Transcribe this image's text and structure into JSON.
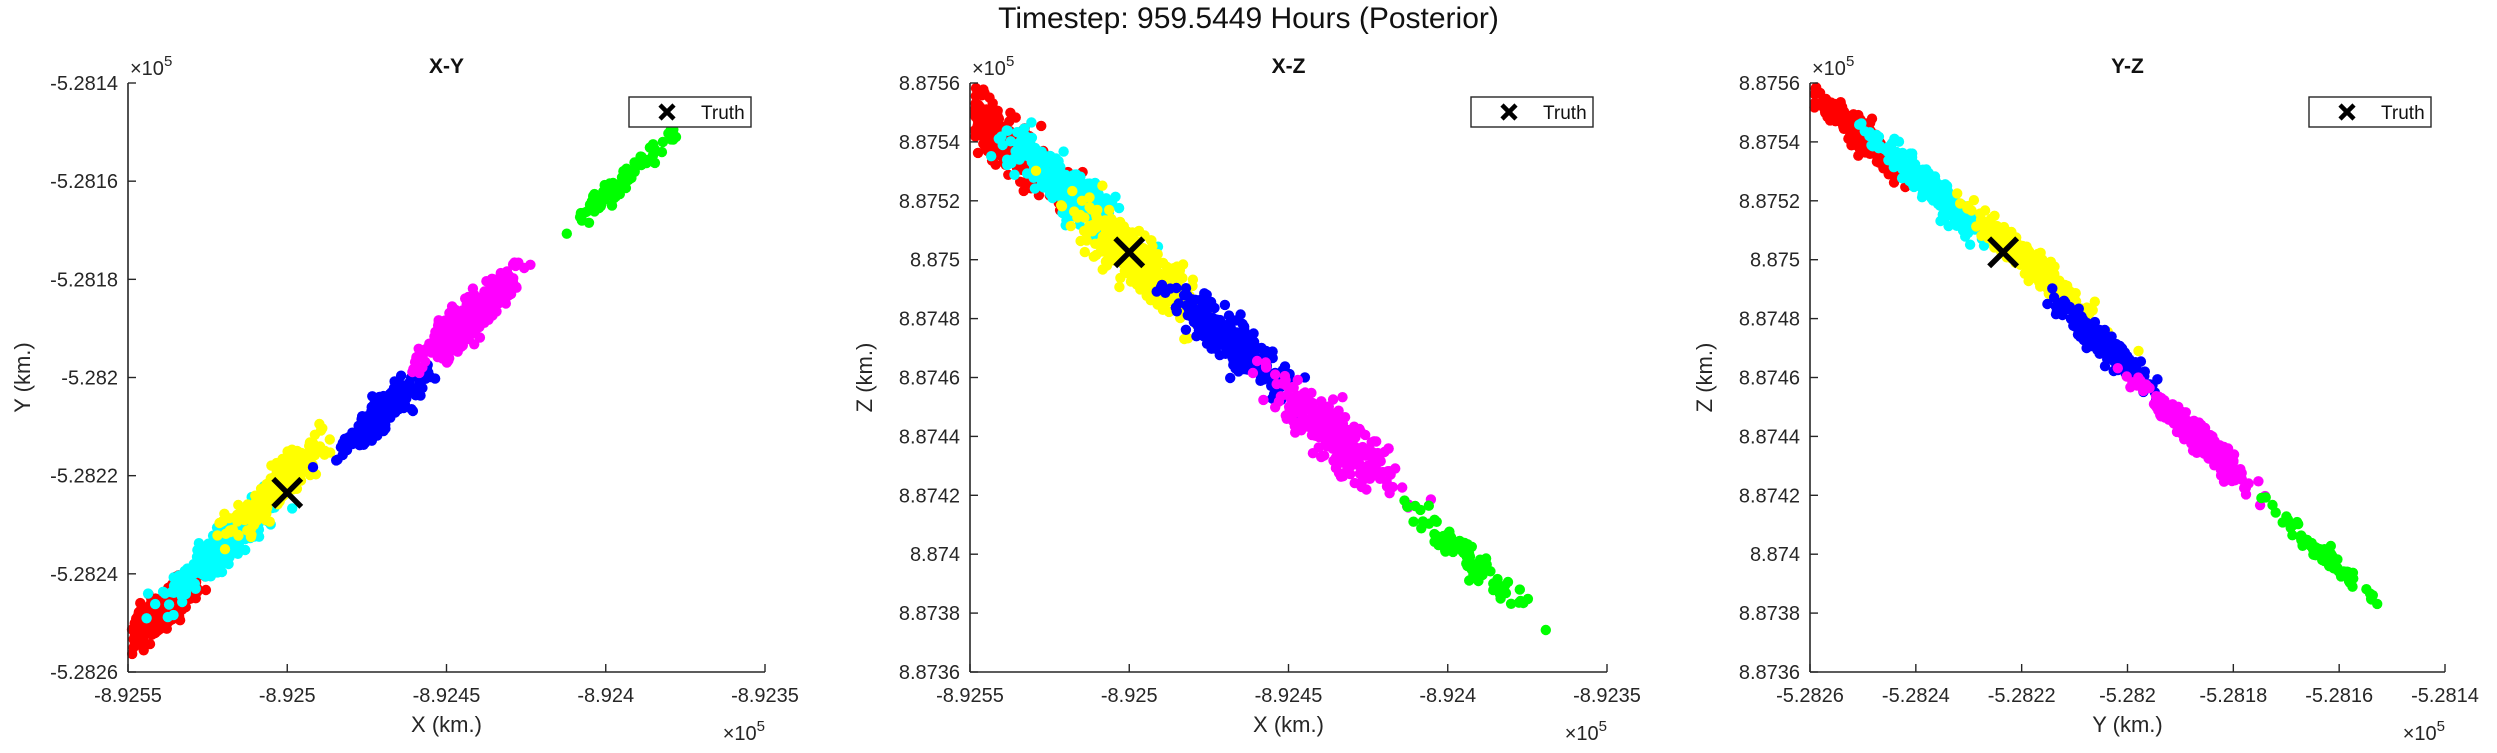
{
  "figure": {
    "title": "Timestep: 959.5449 Hours (Posterior)"
  },
  "chart_data": [
    {
      "type": "scatter",
      "title": "X-Y",
      "xlabel": "X (km.)",
      "ylabel": "Y (km.)",
      "xlim": [
        -892550,
        -892350
      ],
      "ylim": [
        -528260,
        -528140
      ],
      "xticks": [
        -892550,
        -892500,
        -892450,
        -892400,
        -892350
      ],
      "yticks": [
        -528260,
        -528240,
        -528220,
        -528200,
        -528180,
        -528160,
        -528140
      ],
      "xtick_labels": [
        "-8.9255",
        "-8.925",
        "-8.9245",
        "-8.924",
        "-8.9235"
      ],
      "ytick_labels": [
        "-5.2826",
        "-5.2824",
        "-5.2822",
        "-5.282",
        "-5.2818",
        "-5.2816",
        "-5.2814"
      ],
      "x_exponent": "×10^5",
      "y_exponent": "×10^5",
      "legend": {
        "label": "Truth",
        "position": "top-right"
      },
      "truth": {
        "x": -892500,
        "y": -528223.5
      },
      "series": [
        {
          "color": "#ff0000",
          "center": [
            -892540,
            -528248
          ],
          "spread_major": 5.2,
          "spread_minor": 1.3,
          "count": 320
        },
        {
          "color": "#00ffff",
          "center": [
            -892521,
            -528235
          ],
          "spread_major": 5.8,
          "spread_minor": 1.2,
          "count": 320
        },
        {
          "color": "#ffff00",
          "center": [
            -892503,
            -528222
          ],
          "spread_major": 5.6,
          "spread_minor": 1.2,
          "count": 320
        },
        {
          "color": "#0000ff",
          "center": [
            -892470,
            -528207
          ],
          "spread_major": 4.5,
          "spread_minor": 1.1,
          "count": 260
        },
        {
          "color": "#ff00ff",
          "center": [
            -892443,
            -528188
          ],
          "spread_major": 5.0,
          "spread_minor": 1.3,
          "count": 320
        },
        {
          "color": "#00ff00",
          "center": [
            -892395,
            -528160
          ],
          "spread_major": 6.0,
          "spread_minor": 0.7,
          "count": 90
        }
      ]
    },
    {
      "type": "scatter",
      "title": "X-Z",
      "xlabel": "X (km.)",
      "ylabel": "Z (km.)",
      "xlim": [
        -892550,
        -892350
      ],
      "ylim": [
        887360,
        887560
      ],
      "xticks": [
        -892550,
        -892500,
        -892450,
        -892400,
        -892350
      ],
      "yticks": [
        887360,
        887380,
        887400,
        887420,
        887440,
        887460,
        887480,
        887500,
        887520,
        887540,
        887560
      ],
      "xtick_labels": [
        "-8.9255",
        "-8.925",
        "-8.9245",
        "-8.924",
        "-8.9235"
      ],
      "ytick_labels": [
        "8.8736",
        "8.8738",
        "8.874",
        "8.8742",
        "8.8744",
        "8.8746",
        "8.8748",
        "8.875",
        "8.8752",
        "8.8754",
        "8.8756"
      ],
      "x_exponent": "×10^5",
      "y_exponent": "×10^5",
      "legend": {
        "label": "Truth",
        "position": "top-right"
      },
      "truth": {
        "x": -892500,
        "z": 887502.5
      },
      "series": [
        {
          "color": "#ff0000",
          "center": [
            -892540,
            887541
          ],
          "spread_major": 6.5,
          "spread_minor": 1.8,
          "count": 320
        },
        {
          "color": "#00ffff",
          "center": [
            -892520,
            887525
          ],
          "spread_major": 6.5,
          "spread_minor": 1.6,
          "count": 320
        },
        {
          "color": "#ffff00",
          "center": [
            -892497,
            887499
          ],
          "spread_major": 6.5,
          "spread_minor": 1.8,
          "count": 320
        },
        {
          "color": "#0000ff",
          "center": [
            -892468,
            887472
          ],
          "spread_major": 5.5,
          "spread_minor": 1.6,
          "count": 260
        },
        {
          "color": "#ff00ff",
          "center": [
            -892435,
            887440
          ],
          "spread_major": 6.5,
          "spread_minor": 1.8,
          "count": 320
        },
        {
          "color": "#00ff00",
          "center": [
            -892395,
            887400
          ],
          "spread_major": 7.0,
          "spread_minor": 1.0,
          "count": 90
        }
      ]
    },
    {
      "type": "scatter",
      "title": "Y-Z",
      "xlabel": "Y (km.)",
      "ylabel": "Z (km.)",
      "xlim": [
        -528260,
        -528140
      ],
      "ylim": [
        887360,
        887560
      ],
      "xticks": [
        -528260,
        -528240,
        -528220,
        -528200,
        -528180,
        -528160,
        -528140
      ],
      "yticks": [
        887360,
        887380,
        887400,
        887420,
        887440,
        887460,
        887480,
        887500,
        887520,
        887540,
        887560
      ],
      "xtick_labels": [
        "-5.2826",
        "-5.2824",
        "-5.2822",
        "-5.282",
        "-5.2818",
        "-5.2816",
        "-5.2814"
      ],
      "ytick_labels": [
        "8.8736",
        "8.8738",
        "8.874",
        "8.8742",
        "8.8744",
        "8.8746",
        "8.8748",
        "8.875",
        "8.8752",
        "8.8754",
        "8.8756"
      ],
      "x_exponent": "×10^5",
      "y_exponent": "×10^5",
      "legend": {
        "label": "Truth",
        "position": "top-right"
      },
      "truth": {
        "y": -528223.5,
        "z": 887502.5
      },
      "series": [
        {
          "color": "#ff0000",
          "center": [
            -528250,
            887542
          ],
          "spread_major": 5.0,
          "spread_minor": 0.9,
          "count": 320
        },
        {
          "color": "#00ffff",
          "center": [
            -528237,
            887524
          ],
          "spread_major": 5.5,
          "spread_minor": 0.9,
          "count": 320
        },
        {
          "color": "#ffff00",
          "center": [
            -528219,
            887500
          ],
          "spread_major": 5.5,
          "spread_minor": 0.9,
          "count": 320
        },
        {
          "color": "#0000ff",
          "center": [
            -528205,
            887472
          ],
          "spread_major": 4.8,
          "spread_minor": 0.8,
          "count": 260
        },
        {
          "color": "#ff00ff",
          "center": [
            -528187,
            887440
          ],
          "spread_major": 5.5,
          "spread_minor": 0.9,
          "count": 320
        },
        {
          "color": "#00ff00",
          "center": [
            -528163,
            887400
          ],
          "spread_major": 6.0,
          "spread_minor": 0.6,
          "count": 90
        }
      ]
    }
  ]
}
